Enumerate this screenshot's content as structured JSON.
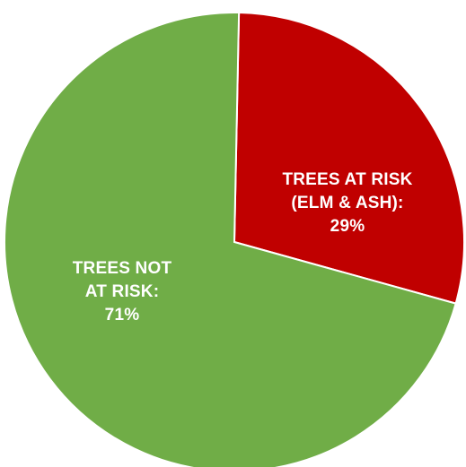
{
  "chart_data": {
    "type": "pie",
    "slices": [
      {
        "label_lines": [
          "TREES AT RISK",
          "(ELM & ASH):",
          "29%"
        ],
        "value": 29,
        "color": "#c00000"
      },
      {
        "label_lines": [
          "TREES NOT",
          "AT RISK:",
          "71%"
        ],
        "value": 71,
        "color": "#70ad47"
      }
    ],
    "legend": "none",
    "title": ""
  }
}
